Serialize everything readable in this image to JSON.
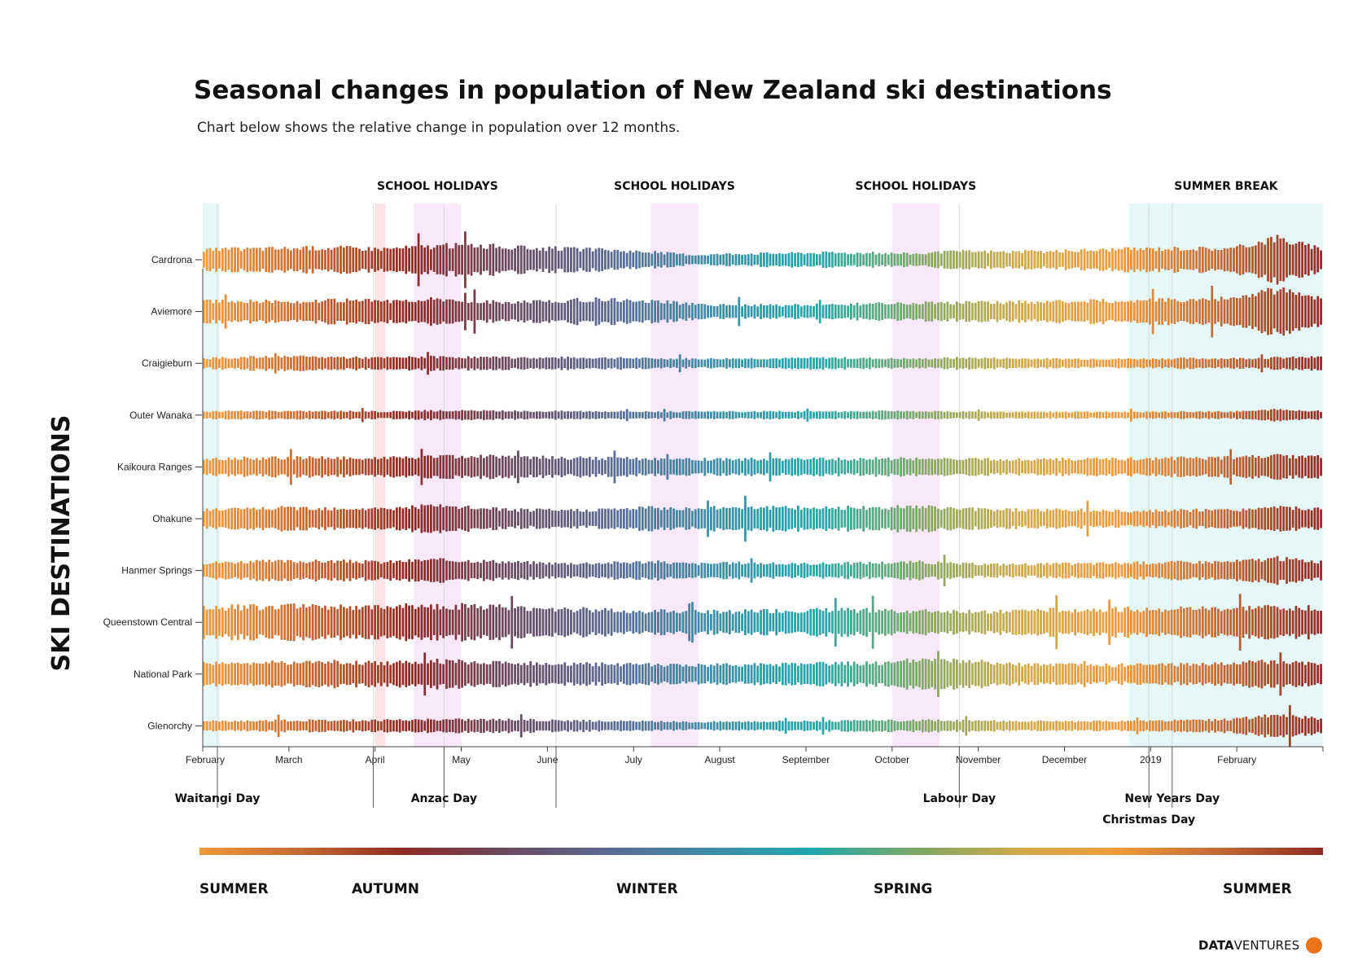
{
  "title": "Seasonal changes in population of New Zealand ski destinations",
  "subtitle": "Chart below shows the relative change in population over 12 months.",
  "y_axis_label": "SKI DESTINATIONS",
  "bands": [
    {
      "label": "",
      "start": 0,
      "end": 0.2,
      "color": "#e6f7f7"
    },
    {
      "label": "",
      "start": 2.0,
      "end": 2.12,
      "color": "#fde3e5"
    },
    {
      "label": "SCHOOL HOLIDAYS",
      "start": 2.45,
      "end": 3.0,
      "color": "#f8e8fa"
    },
    {
      "label": "SCHOOL HOLIDAYS",
      "start": 5.2,
      "end": 5.75,
      "color": "#f8e8fa"
    },
    {
      "label": "SCHOOL HOLIDAYS",
      "start": 8.0,
      "end": 8.55,
      "color": "#f8e8fa"
    },
    {
      "label": "SUMMER BREAK",
      "start": 10.75,
      "end": 13.0,
      "color": "#e6f7f7"
    }
  ],
  "holidays": [
    {
      "label": "Waitangi Day",
      "month": 0.17,
      "level": 1
    },
    {
      "label": "",
      "month": 1.98,
      "level": 1
    },
    {
      "label": "Anzac Day",
      "month": 2.8,
      "level": 1
    },
    {
      "label": "",
      "month": 4.1,
      "level": 1
    },
    {
      "label": "Labour Day",
      "month": 8.78,
      "level": 1
    },
    {
      "label": "Christmas Day",
      "month": 10.98,
      "level": 2
    },
    {
      "label": "New Years Day",
      "month": 11.25,
      "level": 1
    }
  ],
  "axis_ticks": [
    "February",
    "March",
    "April",
    "May",
    "June",
    "July",
    "August",
    "September",
    "October",
    "November",
    "December",
    "2019",
    "February"
  ],
  "seasons": [
    "SUMMER",
    "AUTUMN",
    "WINTER",
    "SPRING",
    "SUMMER"
  ],
  "gradient_colors": [
    "#ef9a3a",
    "#c46a32",
    "#8e2a22",
    "#6a4860",
    "#5a6a94",
    "#3f8ca6",
    "#20a7ad",
    "#7aa866",
    "#cfa94a",
    "#ef9a3a",
    "#c06a36",
    "#8e2a22"
  ],
  "brand": {
    "bold": "DATA",
    "regular": "VENTURES",
    "dot_color": "#ee7318"
  },
  "chart_data": {
    "type": "bar",
    "description_unit": "relative change in population (normalized amplitude, 0-1)",
    "x_range_months": [
      0,
      13
    ],
    "series": [
      {
        "name": "Cardrona",
        "values": [
          0.45,
          0.5,
          0.52,
          0.55,
          0.5,
          0.6,
          0.68,
          0.55,
          0.5,
          0.45,
          0.35,
          0.22,
          0.28,
          0.3,
          0.32,
          0.3,
          0.28,
          0.38,
          0.36,
          0.38,
          0.45,
          0.5,
          0.52,
          0.5,
          1.0,
          0.48
        ]
      },
      {
        "name": "Aviemore",
        "values": [
          0.45,
          0.5,
          0.45,
          0.5,
          0.48,
          0.55,
          0.45,
          0.42,
          0.5,
          0.55,
          0.48,
          0.32,
          0.3,
          0.28,
          0.32,
          0.35,
          0.38,
          0.4,
          0.42,
          0.45,
          0.48,
          0.5,
          0.55,
          0.58,
          1.0,
          0.6
        ]
      },
      {
        "name": "Craigieburn",
        "values": [
          0.22,
          0.28,
          0.3,
          0.28,
          0.25,
          0.3,
          0.28,
          0.25,
          0.26,
          0.25,
          0.22,
          0.2,
          0.22,
          0.22,
          0.25,
          0.22,
          0.2,
          0.25,
          0.22,
          0.2,
          0.2,
          0.2,
          0.22,
          0.22,
          0.25,
          0.28
        ]
      },
      {
        "name": "Outer Wanaka",
        "values": [
          0.16,
          0.18,
          0.18,
          0.18,
          0.16,
          0.2,
          0.2,
          0.18,
          0.18,
          0.18,
          0.16,
          0.15,
          0.16,
          0.16,
          0.16,
          0.18,
          0.16,
          0.15,
          0.14,
          0.14,
          0.14,
          0.14,
          0.15,
          0.16,
          0.25,
          0.18
        ]
      },
      {
        "name": "Kaikoura Ranges",
        "values": [
          0.35,
          0.4,
          0.42,
          0.42,
          0.4,
          0.45,
          0.48,
          0.45,
          0.42,
          0.4,
          0.38,
          0.35,
          0.35,
          0.35,
          0.36,
          0.38,
          0.36,
          0.36,
          0.35,
          0.35,
          0.36,
          0.38,
          0.4,
          0.42,
          0.5,
          0.45
        ]
      },
      {
        "name": "Ohakune",
        "values": [
          0.4,
          0.45,
          0.5,
          0.48,
          0.45,
          0.58,
          0.5,
          0.4,
          0.38,
          0.42,
          0.5,
          0.45,
          0.55,
          0.5,
          0.5,
          0.48,
          0.55,
          0.45,
          0.42,
          0.4,
          0.38,
          0.35,
          0.38,
          0.4,
          0.5,
          0.42
        ]
      },
      {
        "name": "Hanmer Springs",
        "values": [
          0.35,
          0.4,
          0.42,
          0.42,
          0.38,
          0.48,
          0.45,
          0.38,
          0.32,
          0.35,
          0.4,
          0.3,
          0.35,
          0.3,
          0.32,
          0.35,
          0.38,
          0.3,
          0.28,
          0.3,
          0.32,
          0.35,
          0.38,
          0.4,
          0.55,
          0.4
        ]
      },
      {
        "name": "Queenstown Central",
        "values": [
          0.65,
          0.7,
          0.72,
          0.7,
          0.68,
          0.75,
          0.72,
          0.68,
          0.6,
          0.55,
          0.5,
          0.48,
          0.5,
          0.52,
          0.55,
          0.55,
          0.5,
          0.5,
          0.52,
          0.55,
          0.58,
          0.6,
          0.62,
          0.62,
          0.7,
          0.65
        ]
      },
      {
        "name": "National Park",
        "values": [
          0.5,
          0.52,
          0.55,
          0.55,
          0.5,
          0.6,
          0.55,
          0.5,
          0.45,
          0.45,
          0.42,
          0.4,
          0.42,
          0.45,
          0.48,
          0.5,
          0.62,
          0.6,
          0.45,
          0.42,
          0.4,
          0.42,
          0.45,
          0.48,
          0.6,
          0.5
        ]
      },
      {
        "name": "Glenorchy",
        "values": [
          0.2,
          0.24,
          0.25,
          0.26,
          0.25,
          0.28,
          0.3,
          0.28,
          0.25,
          0.22,
          0.2,
          0.18,
          0.2,
          0.22,
          0.22,
          0.24,
          0.25,
          0.24,
          0.22,
          0.2,
          0.2,
          0.22,
          0.25,
          0.28,
          0.5,
          0.32
        ]
      }
    ]
  }
}
